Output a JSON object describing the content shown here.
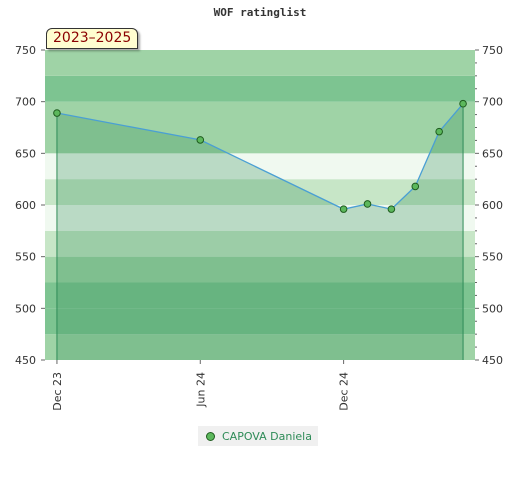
{
  "chart_data": {
    "type": "area",
    "title": "WOF ratinglist",
    "period_label": "2023–2025",
    "ylim": [
      450,
      750
    ],
    "yticks": [
      450,
      500,
      550,
      600,
      650,
      700,
      750
    ],
    "x_tick_labels": [
      "Dec 23",
      "Jun 24",
      "Dec 24"
    ],
    "x_tick_months": [
      0,
      6,
      12
    ],
    "x_range_months": [
      -0.5,
      17.5
    ],
    "grid": true,
    "legend_position": "bottom-center",
    "series": [
      {
        "name": "CAPOVA Daniela",
        "x_months": [
          0,
          6,
          12,
          13,
          14,
          15,
          16,
          17
        ],
        "values": [
          689,
          663,
          596,
          601,
          596,
          618,
          671,
          698
        ]
      }
    ],
    "colors": {
      "line": "#4a9fd4",
      "area": "#2e8b57",
      "marker_fill": "#5cb85c",
      "marker_stroke": "#1e5c1e",
      "border_line": "#2e8b57"
    }
  }
}
